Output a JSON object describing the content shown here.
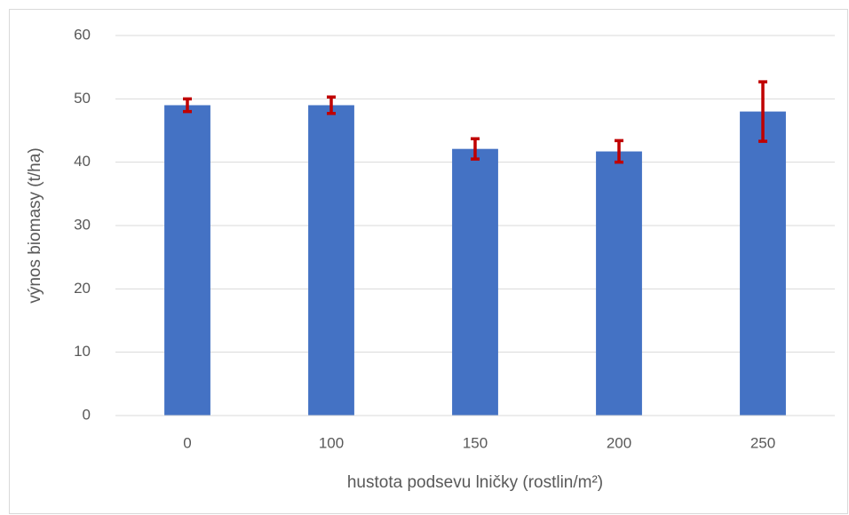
{
  "chart_data": {
    "type": "bar",
    "x_label": "hustota podsevu lničky (rostlin/m²)",
    "y_label": "výnos biomasy (t/ha)",
    "categories": [
      "0",
      "100",
      "150",
      "200",
      "250"
    ],
    "values": [
      49,
      49,
      42.1,
      41.7,
      48
    ],
    "errors": [
      1.0,
      1.3,
      1.6,
      1.7,
      4.7
    ],
    "color": "#4472c4",
    "error_color": "#c00000",
    "ylim": [
      0,
      60
    ],
    "yticks": [
      0,
      10,
      20,
      30,
      40,
      50,
      60
    ],
    "grid": true
  }
}
